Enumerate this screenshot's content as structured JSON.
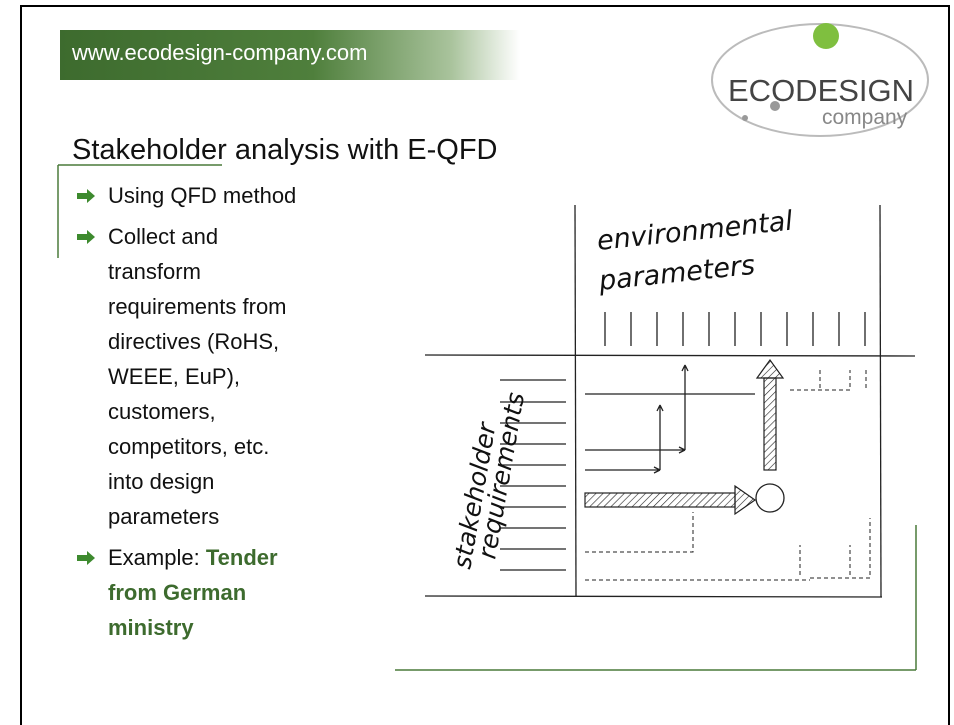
{
  "header": {
    "url": "www.ecodesign-company.com"
  },
  "logo": {
    "brand": "ECODESIGN",
    "sub": "company"
  },
  "title": "Stakeholder analysis with E-QFD",
  "bullets": [
    {
      "text": "Using QFD method"
    },
    {
      "text": "Collect and transform requirements from directives (RoHS, WEEE, EuP), customers, competitors, etc. into design parameters"
    },
    {
      "text": "Example:",
      "emphasis": "Tender from German ministry"
    }
  ],
  "diagram": {
    "top_label_1": "environmental",
    "top_label_2": "parameters",
    "side_label_1": "stakeholder",
    "side_label_2": "requirements"
  }
}
